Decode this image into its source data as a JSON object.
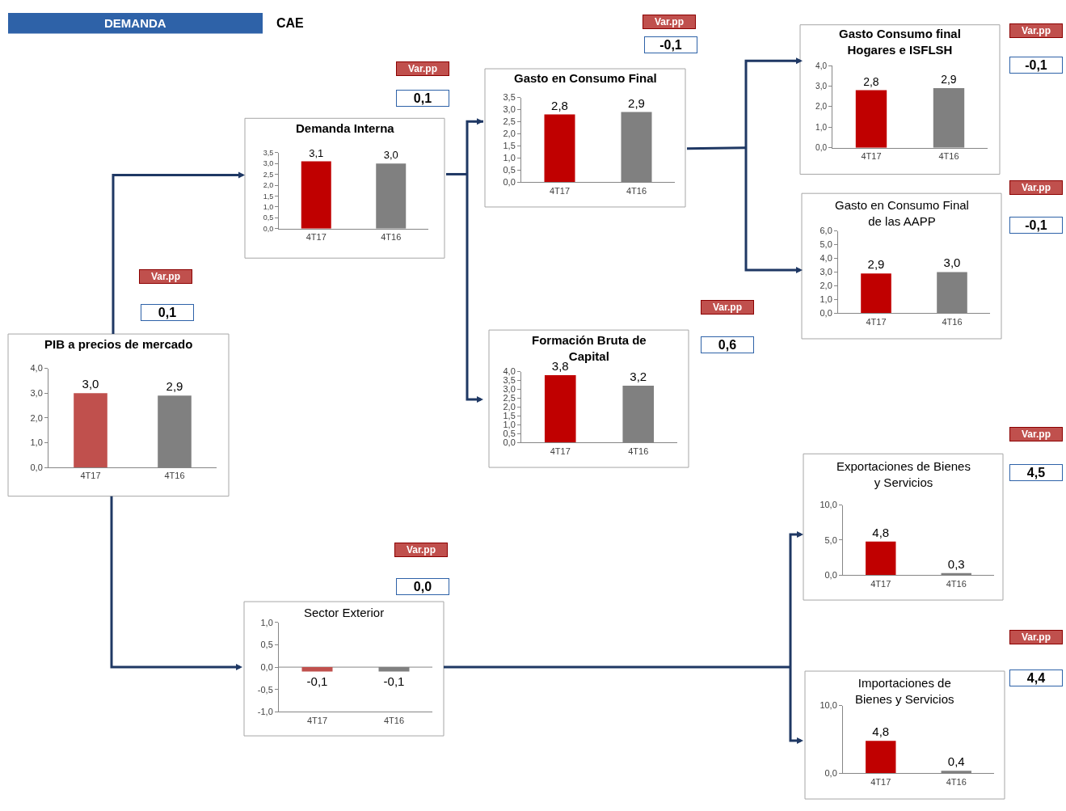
{
  "chart_data": [
    {
      "type": "other",
      "annotations": [
        "DEMANDA",
        "CAE"
      ]
    },
    {
      "type": "bar",
      "title": "PIB a precios de mercado",
      "categories": [
        "4T17",
        "4T16"
      ],
      "values": [
        3.0,
        2.9
      ],
      "colors": [
        "#c0504d",
        "#808080"
      ],
      "value_labels": [
        "3,0",
        "2,9"
      ],
      "ylim": [
        0,
        4
      ],
      "yticks": [
        {
          "value": 0,
          "label": "0,0"
        },
        {
          "value": 1,
          "label": "1,0"
        },
        {
          "value": 2,
          "label": "2,0"
        },
        {
          "value": 3,
          "label": "3,0"
        },
        {
          "value": 4,
          "label": "4,0"
        }
      ],
      "annotations": [
        "Var.pp",
        "0,1"
      ]
    },
    {
      "type": "bar",
      "title": "Demanda Interna",
      "categories": [
        "4T17",
        "4T16"
      ],
      "values": [
        3.1,
        3.0
      ],
      "colors": [
        "#c00000",
        "#808080"
      ],
      "value_labels": [
        "3,1",
        "3,0"
      ],
      "ylim": [
        0,
        3.5
      ],
      "yticks": [
        {
          "value": 0,
          "label": "0,0"
        },
        {
          "value": 0.5,
          "label": "0,5"
        },
        {
          "value": 1,
          "label": "1,0"
        },
        {
          "value": 1.5,
          "label": "1,5"
        },
        {
          "value": 2,
          "label": "2,0"
        },
        {
          "value": 2.5,
          "label": "2,5"
        },
        {
          "value": 3,
          "label": "3,0"
        },
        {
          "value": 3.5,
          "label": "3,5"
        }
      ],
      "annotations": [
        "Var.pp",
        "0,1"
      ]
    },
    {
      "type": "bar",
      "title": "Gasto en Consumo Final",
      "categories": [
        "4T17",
        "4T16"
      ],
      "values": [
        2.8,
        2.9
      ],
      "colors": [
        "#c00000",
        "#808080"
      ],
      "value_labels": [
        "2,8",
        "2,9"
      ],
      "ylim": [
        0,
        3.5
      ],
      "yticks": [
        {
          "value": 0,
          "label": "0,0"
        },
        {
          "value": 0.5,
          "label": "0,5"
        },
        {
          "value": 1,
          "label": "1,0"
        },
        {
          "value": 1.5,
          "label": "1,5"
        },
        {
          "value": 2,
          "label": "2,0"
        },
        {
          "value": 2.5,
          "label": "2,5"
        },
        {
          "value": 3,
          "label": "3,0"
        },
        {
          "value": 3.5,
          "label": "3,5"
        }
      ],
      "annotations": [
        "Var.pp",
        "-0,1"
      ]
    },
    {
      "type": "bar",
      "title": "Gasto Consumo final\nHogares e ISFLSH",
      "categories": [
        "4T17",
        "4T16"
      ],
      "values": [
        2.8,
        2.9
      ],
      "colors": [
        "#c00000",
        "#808080"
      ],
      "value_labels": [
        "2,8",
        "2,9"
      ],
      "ylim": [
        0,
        4
      ],
      "yticks": [
        {
          "value": 0,
          "label": "0,0"
        },
        {
          "value": 1,
          "label": "1,0"
        },
        {
          "value": 2,
          "label": "2,0"
        },
        {
          "value": 3,
          "label": "3,0"
        },
        {
          "value": 4,
          "label": "4,0"
        }
      ],
      "annotations": [
        "Var.pp",
        "-0,1"
      ]
    },
    {
      "type": "bar",
      "title": "Gasto en Consumo Final\nde las AAPP",
      "categories": [
        "4T17",
        "4T16"
      ],
      "values": [
        2.9,
        3.0
      ],
      "colors": [
        "#c00000",
        "#808080"
      ],
      "value_labels": [
        "2,9",
        "3,0"
      ],
      "ylim": [
        0,
        6
      ],
      "yticks": [
        {
          "value": 0,
          "label": "0,0"
        },
        {
          "value": 1,
          "label": "1,0"
        },
        {
          "value": 2,
          "label": "2,0"
        },
        {
          "value": 3,
          "label": "3,0"
        },
        {
          "value": 4,
          "label": "4,0"
        },
        {
          "value": 5,
          "label": "5,0"
        },
        {
          "value": 6,
          "label": "6,0"
        }
      ],
      "annotations": [
        "Var.pp",
        "-0,1"
      ]
    },
    {
      "type": "bar",
      "title": "Formación Bruta de\nCapital",
      "categories": [
        "4T17",
        "4T16"
      ],
      "values": [
        3.8,
        3.2
      ],
      "colors": [
        "#c00000",
        "#808080"
      ],
      "value_labels": [
        "3,8",
        "3,2"
      ],
      "ylim": [
        0,
        4
      ],
      "yticks": [
        {
          "value": 0,
          "label": "0,0"
        },
        {
          "value": 0.5,
          "label": "0,5"
        },
        {
          "value": 1,
          "label": "1,0"
        },
        {
          "value": 1.5,
          "label": "1,5"
        },
        {
          "value": 2,
          "label": "2,0"
        },
        {
          "value": 2.5,
          "label": "2,5"
        },
        {
          "value": 3,
          "label": "3,0"
        },
        {
          "value": 3.5,
          "label": "3,5"
        },
        {
          "value": 4,
          "label": "4,0"
        }
      ],
      "annotations": [
        "Var.pp",
        "0,6"
      ]
    },
    {
      "type": "bar",
      "title": "Sector Exterior",
      "categories": [
        "4T17",
        "4T16"
      ],
      "values": [
        -0.1,
        -0.1
      ],
      "colors": [
        "#c0504d",
        "#808080"
      ],
      "value_labels": [
        "-0,1",
        "-0,1"
      ],
      "ylim": [
        -1,
        1
      ],
      "yticks": [
        {
          "value": -1,
          "label": "-1,0"
        },
        {
          "value": -0.5,
          "label": "-0,5"
        },
        {
          "value": 0,
          "label": "0,0"
        },
        {
          "value": 0.5,
          "label": "0,5"
        },
        {
          "value": 1,
          "label": "1,0"
        }
      ],
      "annotations": [
        "Var.pp",
        "0,0"
      ]
    },
    {
      "type": "bar",
      "title": "Exportaciones de Bienes\ny Servicios",
      "categories": [
        "4T17",
        "4T16"
      ],
      "values": [
        4.8,
        0.3
      ],
      "colors": [
        "#c00000",
        "#808080"
      ],
      "value_labels": [
        "4,8",
        "0,3"
      ],
      "ylim": [
        0,
        10
      ],
      "yticks": [
        {
          "value": 0,
          "label": "0,0"
        },
        {
          "value": 5,
          "label": "5,0"
        },
        {
          "value": 10,
          "label": "10,0"
        }
      ],
      "annotations": [
        "Var.pp",
        "4,5"
      ]
    },
    {
      "type": "bar",
      "title": "Importaciones de\nBienes y Servicios",
      "categories": [
        "4T17",
        "4T16"
      ],
      "values": [
        4.8,
        0.4
      ],
      "colors": [
        "#c00000",
        "#808080"
      ],
      "value_labels": [
        "4,8",
        "0,4"
      ],
      "ylim": [
        0,
        10
      ],
      "yticks": [
        {
          "value": 0,
          "label": "0,0"
        },
        {
          "value": 10,
          "label": "10,0"
        }
      ],
      "annotations": [
        "Var.pp",
        "4,4"
      ]
    }
  ]
}
